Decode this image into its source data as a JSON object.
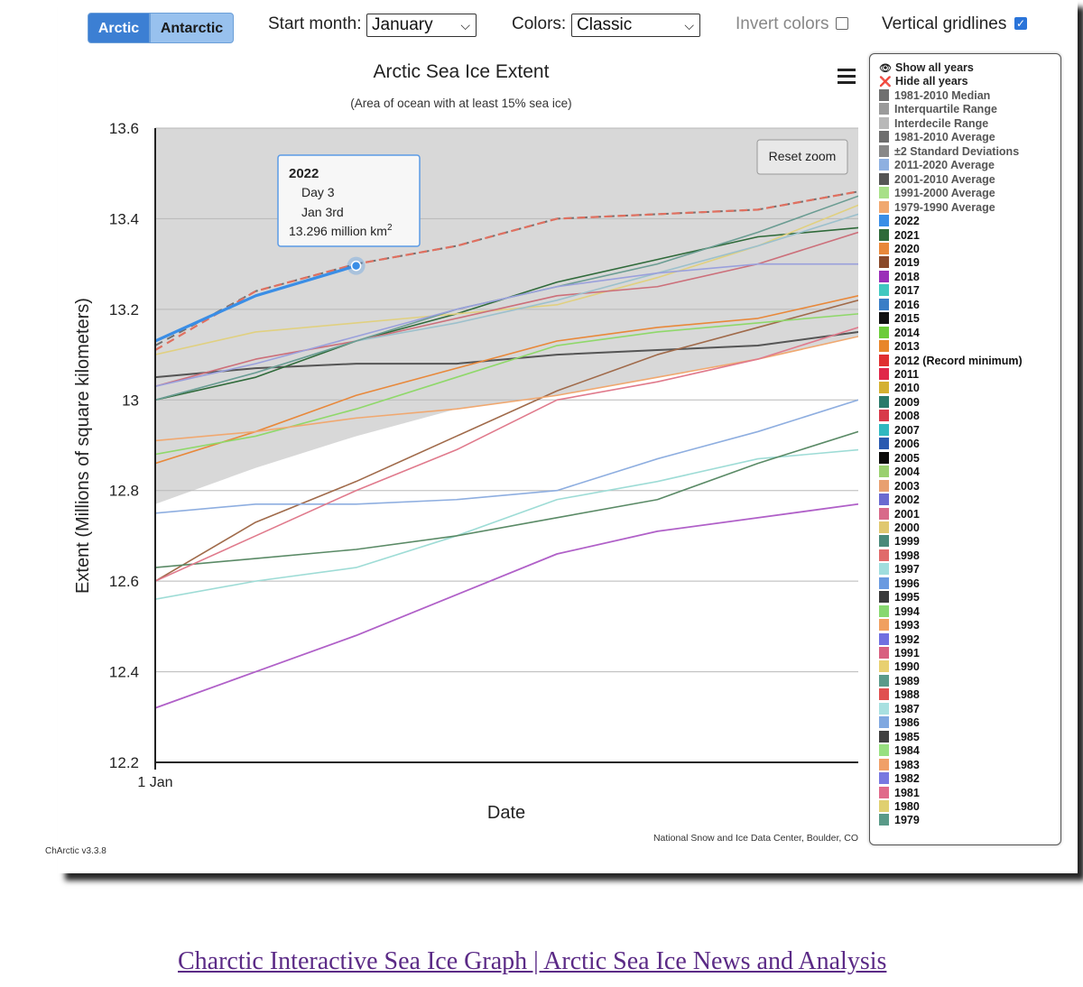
{
  "controls": {
    "arctic_label": "Arctic",
    "antarctic_label": "Antarctic",
    "start_month_label": "Start month:",
    "start_month_value": "January",
    "colors_label": "Colors:",
    "colors_value": "Classic",
    "invert_label": "Invert colors",
    "invert_checked": false,
    "gridlines_label": "Vertical gridlines",
    "gridlines_checked": true
  },
  "chart_data": {
    "type": "line",
    "title": "Arctic Sea Ice Extent",
    "subtitle": "(Area of ocean with at least 15% sea ice)",
    "xlabel": "Date",
    "ylabel": "Extent (Millions of square kilometers)",
    "ylim": [
      12.2,
      13.6
    ],
    "yticks": [
      "13.6",
      "13.4",
      "13.2",
      "13",
      "12.8",
      "12.6",
      "12.4",
      "12.2"
    ],
    "xtick_label": "1 Jan",
    "x_days": [
      1,
      2,
      3,
      4,
      5,
      6,
      7,
      8
    ],
    "reset_zoom_label": "Reset zoom",
    "credit": "National Snow and Ice Data Center, Boulder, CO",
    "version": "ChArctic v3.3.8",
    "band": {
      "name": "±2 Standard Deviations",
      "upper": [
        13.6,
        13.6,
        13.6,
        13.6,
        13.6,
        13.6,
        13.6,
        13.6
      ],
      "lower": [
        12.77,
        12.85,
        12.92,
        12.98,
        13.01,
        13.05,
        13.09,
        13.14
      ]
    },
    "tooltip": {
      "year": "2022",
      "day": "Day 3",
      "date": "Jan 3rd",
      "value": "13.296 million km",
      "unit_sup": "2"
    },
    "series": [
      {
        "name": "1981-2010 Average",
        "color": "#707070",
        "dash": true,
        "width": 2,
        "values": [
          13.12,
          13.24,
          13.3,
          13.34,
          13.4,
          13.41,
          13.42,
          13.46
        ]
      },
      {
        "name": "2011-2020 Average",
        "color": "#e07060",
        "dash": true,
        "width": 2.2,
        "values": [
          13.11,
          13.24,
          13.3,
          13.34,
          13.4,
          13.41,
          13.42,
          13.46
        ]
      },
      {
        "name": "1981-2010 Median",
        "color": "#555555",
        "dash": false,
        "width": 2,
        "values": [
          13.05,
          13.07,
          13.08,
          13.08,
          13.1,
          13.11,
          13.12,
          13.15
        ]
      },
      {
        "name": "2021",
        "color": "#2f6a3a",
        "dash": false,
        "width": 1.6,
        "values": [
          13.0,
          13.05,
          13.13,
          13.19,
          13.26,
          13.31,
          13.36,
          13.38
        ]
      },
      {
        "name": "2020",
        "color": "#e8883a",
        "dash": false,
        "width": 1.6,
        "values": [
          12.86,
          12.93,
          13.01,
          13.07,
          13.13,
          13.16,
          13.18,
          13.23
        ]
      },
      {
        "name": "2019",
        "color": "#a06a4a",
        "dash": false,
        "width": 1.6,
        "values": [
          12.6,
          12.73,
          12.82,
          12.92,
          13.02,
          13.1,
          13.16,
          13.22
        ]
      },
      {
        "name": "2018",
        "color": "#b060c8",
        "dash": false,
        "width": 1.8,
        "values": [
          12.32,
          12.4,
          12.48,
          12.57,
          12.66,
          12.71,
          12.74,
          12.77
        ]
      },
      {
        "name": "2017",
        "color": "#9edcd6",
        "dash": false,
        "width": 1.6,
        "values": [
          12.56,
          12.6,
          12.63,
          12.7,
          12.78,
          12.82,
          12.87,
          12.89
        ]
      },
      {
        "name": "2016",
        "color": "#8eaee0",
        "dash": false,
        "width": 1.6,
        "values": [
          12.75,
          12.77,
          12.77,
          12.78,
          12.8,
          12.87,
          12.93,
          13.0
        ]
      },
      {
        "name": "2015",
        "color": "#5a8a66",
        "dash": false,
        "width": 1.6,
        "values": [
          12.63,
          12.65,
          12.67,
          12.7,
          12.74,
          12.78,
          12.86,
          12.93
        ]
      },
      {
        "name": "2014",
        "color": "#8fd86a",
        "dash": false,
        "width": 1.6,
        "values": [
          12.88,
          12.92,
          12.98,
          13.05,
          13.12,
          13.15,
          13.17,
          13.19
        ]
      },
      {
        "name": "2013",
        "color": "#f0a870",
        "dash": false,
        "width": 1.6,
        "values": [
          12.91,
          12.93,
          12.96,
          12.98,
          13.01,
          13.05,
          13.09,
          13.14
        ]
      },
      {
        "name": "2012 (Record minimum)",
        "color": "#e07a8c",
        "dash": false,
        "width": 1.6,
        "values": [
          12.6,
          12.7,
          12.8,
          12.89,
          13.0,
          13.04,
          13.09,
          13.16
        ]
      },
      {
        "name": "2011",
        "color": "#e0d080",
        "dash": false,
        "width": 1.6,
        "values": [
          13.1,
          13.15,
          13.17,
          13.19,
          13.21,
          13.27,
          13.34,
          13.43
        ]
      },
      {
        "name": "2010",
        "color": "#cc6f7a",
        "dash": false,
        "width": 1.6,
        "values": [
          13.03,
          13.09,
          13.13,
          13.18,
          13.23,
          13.25,
          13.3,
          13.37
        ]
      },
      {
        "name": "2009",
        "color": "#9cc0cc",
        "dash": false,
        "width": 1.6,
        "values": [
          13.0,
          13.06,
          13.13,
          13.17,
          13.22,
          13.28,
          13.34,
          13.41
        ]
      },
      {
        "name": "2008",
        "color": "#6a9c92",
        "dash": false,
        "width": 1.6,
        "values": [
          13.0,
          13.06,
          13.13,
          13.2,
          13.25,
          13.3,
          13.37,
          13.45
        ]
      },
      {
        "name": "2007",
        "color": "#9aa0dc",
        "dash": false,
        "width": 1.6,
        "values": [
          13.03,
          13.08,
          13.14,
          13.2,
          13.25,
          13.28,
          13.3,
          13.3
        ]
      },
      {
        "name": "2022",
        "color": "#3a8ee6",
        "dash": false,
        "width": 3.2,
        "values": [
          13.13,
          13.23,
          13.296
        ]
      }
    ]
  },
  "legend": {
    "show_all": "Show all years",
    "hide_all": "Hide all years",
    "items": [
      {
        "label": "1981-2010 Median",
        "color": "#707070"
      },
      {
        "label": "Interquartile Range",
        "color": "#9a9a9a"
      },
      {
        "label": "Interdecile Range",
        "color": "#b8b8b8"
      },
      {
        "label": "1981-2010 Average",
        "color": "#6e6e6e"
      },
      {
        "label": "±2 Standard Deviations",
        "color": "#888888"
      },
      {
        "label": "2011-2020 Average",
        "color": "#8eb0e0"
      },
      {
        "label": "2001-2010 Average",
        "color": "#555555"
      },
      {
        "label": "1991-2000 Average",
        "color": "#a8e088"
      },
      {
        "label": "1979-1990 Average",
        "color": "#f0a870"
      },
      {
        "label": "2022",
        "color": "#3a8ee6"
      },
      {
        "label": "2021",
        "color": "#2f6a3a"
      },
      {
        "label": "2020",
        "color": "#e8883a"
      },
      {
        "label": "2019",
        "color": "#8b4a2a"
      },
      {
        "label": "2018",
        "color": "#9a2eb8"
      },
      {
        "label": "2017",
        "color": "#40c8c0"
      },
      {
        "label": "2016",
        "color": "#3a7ec6"
      },
      {
        "label": "2015",
        "color": "#111111"
      },
      {
        "label": "2014",
        "color": "#6ccc3a"
      },
      {
        "label": "2013",
        "color": "#e8862a"
      },
      {
        "label": "2012 (Record minimum)",
        "color": "#e03030"
      },
      {
        "label": "2011",
        "color": "#e0284a"
      },
      {
        "label": "2010",
        "color": "#d4b030"
      },
      {
        "label": "2009",
        "color": "#2a7a6a"
      },
      {
        "label": "2008",
        "color": "#d83a4a"
      },
      {
        "label": "2007",
        "color": "#30b8c0"
      },
      {
        "label": "2006",
        "color": "#2a5ab0"
      },
      {
        "label": "2005",
        "color": "#0a0a0a"
      },
      {
        "label": "2004",
        "color": "#9ad070"
      },
      {
        "label": "2003",
        "color": "#e8a070"
      },
      {
        "label": "2002",
        "color": "#6a6ad0"
      },
      {
        "label": "2001",
        "color": "#d86a8a"
      },
      {
        "label": "2000",
        "color": "#e0c870"
      },
      {
        "label": "1999",
        "color": "#4a8a7a"
      },
      {
        "label": "1998",
        "color": "#e06a6a"
      },
      {
        "label": "1997",
        "color": "#a0dede"
      },
      {
        "label": "1996",
        "color": "#6a9ae0"
      },
      {
        "label": "1995",
        "color": "#3a3a3a"
      },
      {
        "label": "1994",
        "color": "#88d870"
      },
      {
        "label": "1993",
        "color": "#f0a060"
      },
      {
        "label": "1992",
        "color": "#7070e0"
      },
      {
        "label": "1991",
        "color": "#d86080"
      },
      {
        "label": "1990",
        "color": "#e8d070"
      },
      {
        "label": "1989",
        "color": "#5a9a8a"
      },
      {
        "label": "1988",
        "color": "#e05050"
      },
      {
        "label": "1987",
        "color": "#a8e0e0"
      },
      {
        "label": "1986",
        "color": "#80a8e0"
      },
      {
        "label": "1985",
        "color": "#404040"
      },
      {
        "label": "1984",
        "color": "#98e080"
      },
      {
        "label": "1983",
        "color": "#f0a068"
      },
      {
        "label": "1982",
        "color": "#7878e0"
      },
      {
        "label": "1981",
        "color": "#e06a8a"
      },
      {
        "label": "1980",
        "color": "#e0d070"
      },
      {
        "label": "1979",
        "color": "#5a9a88"
      }
    ]
  },
  "footer": {
    "link_text": "Charctic Interactive Sea Ice Graph | Arctic Sea Ice News and Analysis"
  }
}
